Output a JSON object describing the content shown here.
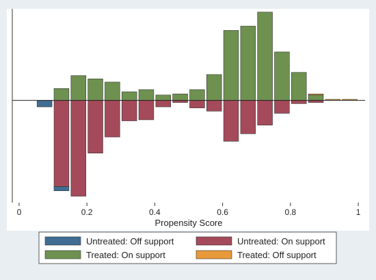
{
  "chart_data": {
    "type": "bar",
    "subtype": "mirrored-histogram",
    "title": "",
    "xlabel": "Propensity Score",
    "ylabel": "",
    "xlim": [
      -0.02,
      1.02
    ],
    "ylim": [
      -0.095,
      0.085
    ],
    "x_ticks": [
      {
        "value": 0,
        "label": "0"
      },
      {
        "value": 0.2,
        "label": "0.2"
      },
      {
        "value": 0.4,
        "label": "0.4"
      },
      {
        "value": 0.6,
        "label": "0.6"
      },
      {
        "value": 0.8,
        "label": "0.8"
      },
      {
        "value": 1,
        "label": "1"
      }
    ],
    "grid": false,
    "legend_position": "bottom",
    "bin_width": 0.05,
    "series": [
      {
        "name": "Untreated: Off support",
        "color": "#416d93",
        "bars": [
          {
            "x": 0.05,
            "y": -0.006
          },
          {
            "x": 0.1,
            "y": -0.004,
            "base": -0.08
          }
        ]
      },
      {
        "name": "Untreated: On support",
        "color": "#a54a5a",
        "bars": [
          {
            "x": 0.1,
            "y": -0.08
          },
          {
            "x": 0.15,
            "y": -0.089
          },
          {
            "x": 0.2,
            "y": -0.049
          },
          {
            "x": 0.25,
            "y": -0.034
          },
          {
            "x": 0.3,
            "y": -0.019
          },
          {
            "x": 0.35,
            "y": -0.018
          },
          {
            "x": 0.4,
            "y": -0.006
          },
          {
            "x": 0.45,
            "y": -0.002
          },
          {
            "x": 0.5,
            "y": -0.007
          },
          {
            "x": 0.55,
            "y": -0.01
          },
          {
            "x": 0.6,
            "y": -0.038
          },
          {
            "x": 0.65,
            "y": -0.031
          },
          {
            "x": 0.7,
            "y": -0.023
          },
          {
            "x": 0.75,
            "y": -0.012
          },
          {
            "x": 0.8,
            "y": -0.003
          },
          {
            "x": 0.85,
            "y": -0.002
          }
        ]
      },
      {
        "name": "Treated: On support",
        "color": "#6e9150",
        "bars": [
          {
            "x": 0.1,
            "y": 0.011
          },
          {
            "x": 0.15,
            "y": 0.023
          },
          {
            "x": 0.2,
            "y": 0.02
          },
          {
            "x": 0.25,
            "y": 0.017
          },
          {
            "x": 0.3,
            "y": 0.008
          },
          {
            "x": 0.35,
            "y": 0.01
          },
          {
            "x": 0.4,
            "y": 0.005
          },
          {
            "x": 0.45,
            "y": 0.006
          },
          {
            "x": 0.5,
            "y": 0.01
          },
          {
            "x": 0.55,
            "y": 0.024
          },
          {
            "x": 0.6,
            "y": 0.065
          },
          {
            "x": 0.65,
            "y": 0.069
          },
          {
            "x": 0.7,
            "y": 0.082
          },
          {
            "x": 0.75,
            "y": 0.045
          },
          {
            "x": 0.8,
            "y": 0.026
          },
          {
            "x": 0.85,
            "y": 0.005
          }
        ]
      },
      {
        "name": "Treated: Off support",
        "color": "#e8993a",
        "bars": [
          {
            "x": 0.85,
            "y": 0.001,
            "base": 0.005
          },
          {
            "x": 0.9,
            "y": 0.001
          },
          {
            "x": 0.95,
            "y": 0.001
          }
        ]
      }
    ]
  }
}
